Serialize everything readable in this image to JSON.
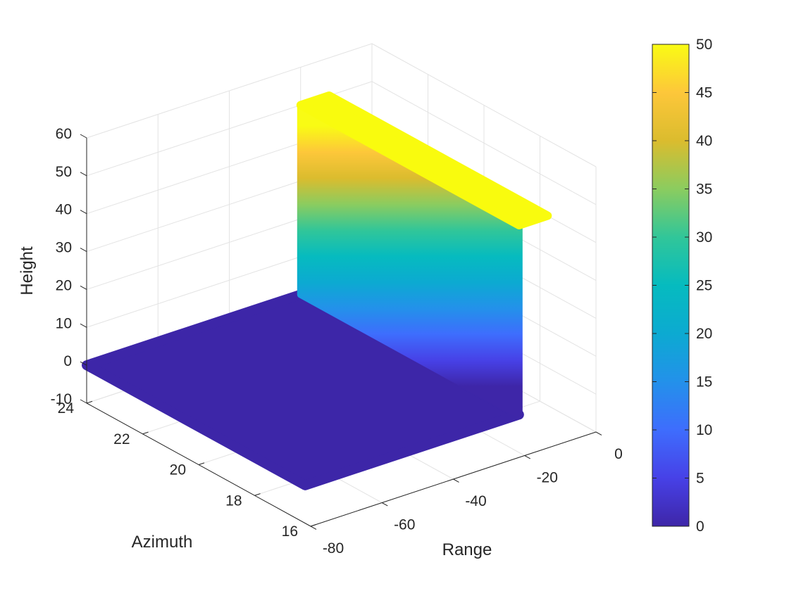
{
  "chart_data": {
    "type": "surface",
    "description_visible": "3D scatter surface: ground plane at height 0 and vertical wall at range -20 rising to height 50, with horizontal top ledge",
    "xlabel": "Range",
    "ylabel": "Azimuth",
    "zlabel": "Height",
    "xlim": [
      -80,
      0
    ],
    "ylim": [
      16,
      24
    ],
    "zlim": [
      -10,
      60
    ],
    "x_ticks": [
      "-80",
      "-60",
      "-40",
      "-20",
      "0"
    ],
    "y_ticks": [
      "16",
      "18",
      "20",
      "22",
      "24"
    ],
    "z_ticks": [
      "-10",
      "0",
      "10",
      "20",
      "30",
      "40",
      "50",
      "60"
    ],
    "grid": true,
    "colormap": "parula",
    "colorbar": {
      "limits": [
        0,
        50
      ],
      "ticks": [
        "0",
        "5",
        "10",
        "15",
        "20",
        "25",
        "30",
        "35",
        "40",
        "45",
        "50"
      ],
      "placement": "right"
    },
    "series": [
      {
        "part": "ground",
        "range": [
          -80,
          -20
        ],
        "azimuth": [
          16.2,
          24
        ],
        "height": 0,
        "color_value": 0
      },
      {
        "part": "wall",
        "range": -20,
        "azimuth": [
          16.2,
          24
        ],
        "height": [
          0,
          50
        ],
        "color_value": [
          0,
          50
        ]
      },
      {
        "part": "top-ledge",
        "range": [
          -20,
          -12
        ],
        "azimuth": [
          16.2,
          24
        ],
        "height": 50,
        "color_value": 50
      }
    ],
    "colors": {
      "low": "#3d26a8",
      "high": "#f9fb0e"
    }
  }
}
